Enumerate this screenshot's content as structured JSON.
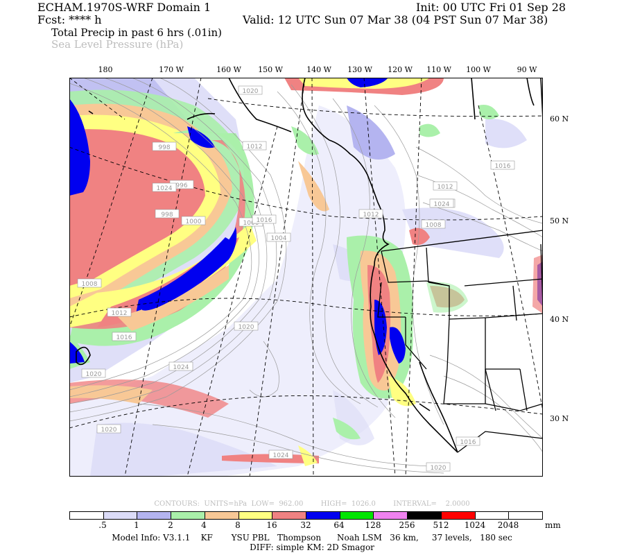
{
  "header": {
    "model_title": "ECHAM.1970S-WRF Domain 1",
    "init": "Init: 00 UTC Fri 01 Sep 28",
    "fcst": "Fcst: **** h",
    "valid": "Valid: 12 UTC Sun 07 Mar 38 (04 PST Sun 07 Mar 38)",
    "field_1": "Total Precip in past 6 hrs (.01in)",
    "field_2": "Sea Level Pressure (hPa)"
  },
  "longitude_labels": [
    "180",
    "170 W",
    "160 W",
    "150 W",
    "140 W",
    "130 W",
    "120 W",
    "110 W",
    "100 W",
    "90 W"
  ],
  "latitude_labels": [
    "60 N",
    "50 N",
    "40 N",
    "30 N"
  ],
  "isobar_labels": [
    "1020",
    "1012",
    "1016",
    "1008",
    "1012",
    "1012",
    "1004",
    "1000",
    "998",
    "1000",
    "998",
    "996",
    "1016",
    "1020",
    "1008",
    "1012",
    "1016",
    "1020",
    "1024",
    "1024",
    "1020",
    "1016",
    "1020",
    "1024",
    "1024",
    "1012"
  ],
  "contour_info": "CONTOURS:  UNITS=hPa  LOW=  962.00        HIGH=  1026.0        INTERVAL=    2.0000",
  "colorbar": {
    "colors": [
      "#ffffff",
      "#dcdcf8",
      "#b4b4f0",
      "#aaf0aa",
      "#f8c896",
      "#ffff82",
      "#f08282",
      "#0000f0",
      "#00e600",
      "#f082f0",
      "#000000",
      "#ff0000",
      "#ffffff",
      "#ffffff"
    ],
    "labels": [
      ".5",
      "1",
      "2",
      "4",
      "8",
      "16",
      "32",
      "64",
      "128",
      "256",
      "512",
      "1024",
      "2048"
    ],
    "unit": "mm"
  },
  "footer": {
    "line1": "Model Info: V3.1.1    KF       YSU PBL   Thompson      Noah LSM   36 km,     37 levels,   180 sec",
    "line2": "DIFF: simple KM: 2D Smagor"
  }
}
